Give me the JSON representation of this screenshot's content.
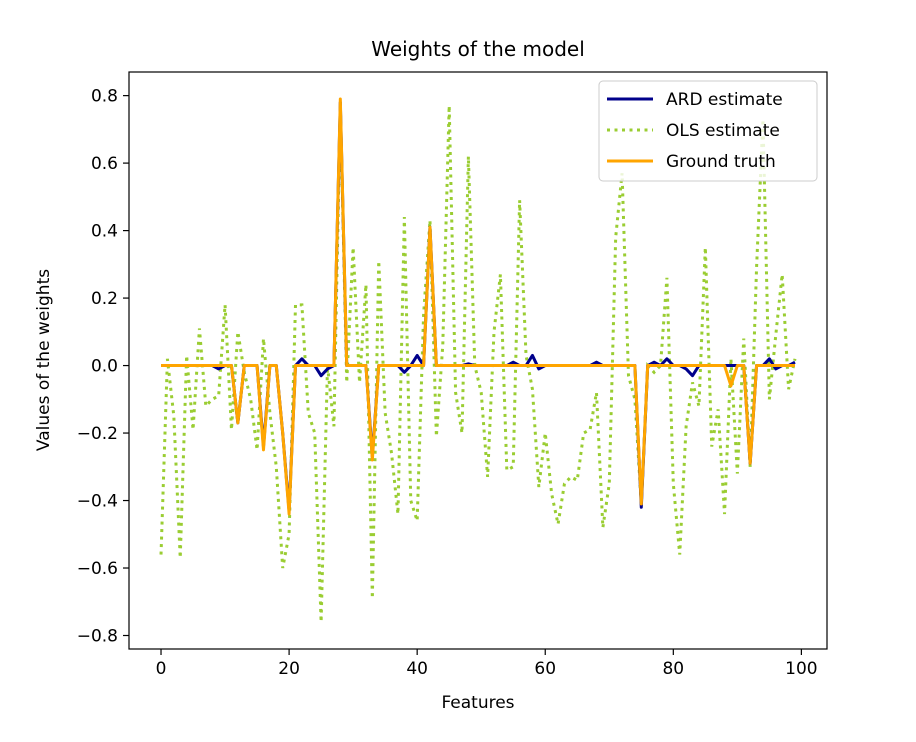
{
  "chart_data": {
    "type": "line",
    "title": "Weights of the model",
    "xlabel": "Features",
    "ylabel": "Values of the weights",
    "xlim": [
      -5,
      104
    ],
    "ylim": [
      -0.84,
      0.87
    ],
    "xticks": [
      0,
      20,
      40,
      60,
      80,
      100
    ],
    "xtick_labels": [
      "0",
      "20",
      "40",
      "60",
      "80",
      "100"
    ],
    "yticks": [
      -0.8,
      -0.6,
      -0.4,
      -0.2,
      0.0,
      0.2,
      0.4,
      0.6,
      0.8
    ],
    "ytick_labels": [
      "−0.8",
      "−0.6",
      "−0.4",
      "−0.2",
      "0.0",
      "0.2",
      "0.4",
      "0.6",
      "0.8"
    ],
    "grid": false,
    "legend_position": "top-right",
    "series": [
      {
        "name": "ARD estimate",
        "color": "#00008b",
        "style": "solid",
        "values": [
          0.0,
          0.0,
          0.0,
          0.0,
          0.0,
          0.0,
          0.0,
          0.0,
          0.0,
          -0.01,
          0.0,
          0.0,
          -0.17,
          0.0,
          0.0,
          0.0,
          -0.24,
          0.0,
          0.0,
          -0.2,
          -0.43,
          0.0,
          0.02,
          0.0,
          0.0,
          -0.03,
          -0.01,
          0.0,
          0.78,
          0.0,
          0.0,
          0.0,
          0.0,
          -0.27,
          0.0,
          0.0,
          0.0,
          0.0,
          -0.02,
          0.0,
          0.03,
          0.0,
          0.41,
          0.0,
          0.0,
          0.0,
          0.0,
          0.0,
          0.005,
          0.0,
          0.0,
          0.0,
          0.0,
          0.0,
          0.0,
          0.01,
          0.0,
          0.0,
          0.03,
          -0.01,
          0.0,
          0.0,
          0.0,
          0.0,
          0.0,
          0.0,
          0.0,
          0.0,
          0.01,
          0.0,
          0.0,
          0.0,
          0.0,
          0.0,
          0.0,
          -0.42,
          0.0,
          0.01,
          0.0,
          0.02,
          0.0,
          0.0,
          -0.01,
          -0.03,
          0.0,
          0.0,
          0.0,
          0.0,
          0.0,
          0.0,
          0.0,
          0.0,
          -0.29,
          0.0,
          0.0,
          0.02,
          -0.01,
          0.0,
          0.0,
          0.01
        ]
      },
      {
        "name": "OLS estimate",
        "color": "#9acd32",
        "style": "dotted",
        "values": [
          -0.56,
          0.02,
          -0.15,
          -0.57,
          0.03,
          -0.19,
          0.11,
          -0.12,
          -0.1,
          -0.09,
          0.18,
          -0.19,
          0.1,
          -0.02,
          -0.1,
          -0.25,
          0.08,
          -0.14,
          -0.3,
          -0.6,
          -0.5,
          0.18,
          0.18,
          -0.14,
          -0.2,
          -0.76,
          0.0,
          -0.18,
          0.77,
          -0.05,
          0.35,
          -0.05,
          0.24,
          -0.69,
          0.31,
          -0.14,
          -0.26,
          -0.44,
          0.44,
          -0.4,
          -0.46,
          0.15,
          0.43,
          -0.21,
          0.06,
          0.77,
          -0.08,
          -0.2,
          0.62,
          0.0,
          -0.08,
          -0.33,
          0.1,
          0.27,
          -0.31,
          -0.3,
          0.49,
          0.03,
          -0.07,
          -0.36,
          -0.2,
          -0.38,
          -0.47,
          -0.35,
          -0.33,
          -0.34,
          -0.2,
          -0.19,
          -0.08,
          -0.48,
          -0.35,
          0.38,
          0.57,
          -0.03,
          -0.1,
          -0.41,
          0.0,
          -0.02,
          0.0,
          0.26,
          -0.35,
          -0.56,
          -0.18,
          -0.05,
          -0.12,
          0.35,
          -0.24,
          -0.13,
          -0.44,
          0.02,
          -0.32,
          0.08,
          -0.3,
          0.29,
          0.73,
          -0.1,
          0.09,
          0.27,
          -0.07,
          0.02
        ]
      },
      {
        "name": "Ground truth",
        "color": "#ffa500",
        "style": "solid",
        "values": [
          0.0,
          0.0,
          0.0,
          0.0,
          0.0,
          0.0,
          0.0,
          0.0,
          0.0,
          0.0,
          0.0,
          0.0,
          -0.17,
          0.0,
          0.0,
          0.0,
          -0.25,
          0.0,
          0.0,
          -0.2,
          -0.44,
          0.0,
          0.0,
          0.0,
          0.0,
          0.0,
          0.0,
          0.0,
          0.79,
          0.0,
          0.0,
          0.0,
          0.0,
          -0.28,
          0.0,
          0.0,
          0.0,
          0.0,
          0.0,
          0.0,
          0.0,
          0.0,
          0.41,
          0.0,
          0.0,
          0.0,
          0.0,
          0.0,
          0.0,
          0.0,
          0.0,
          0.0,
          0.0,
          0.0,
          0.0,
          0.0,
          0.0,
          0.0,
          0.0,
          0.0,
          0.0,
          0.0,
          0.0,
          0.0,
          0.0,
          0.0,
          0.0,
          0.0,
          0.0,
          0.0,
          0.0,
          0.0,
          0.0,
          0.0,
          0.0,
          -0.41,
          0.0,
          0.0,
          0.0,
          0.0,
          0.0,
          0.0,
          0.0,
          0.0,
          0.0,
          0.0,
          0.0,
          0.0,
          0.0,
          -0.06,
          0.0,
          0.0,
          -0.29,
          0.0,
          0.0,
          0.0,
          0.0,
          0.0,
          0.0,
          0.0
        ]
      }
    ]
  }
}
